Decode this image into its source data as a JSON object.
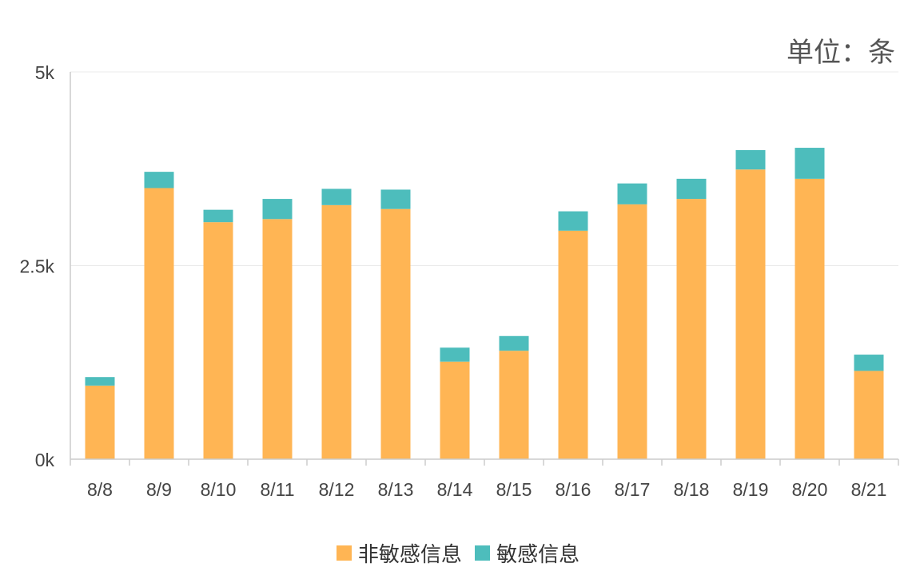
{
  "unit_label": "单位：条",
  "chart_data": {
    "type": "bar",
    "stacked": true,
    "categories": [
      "8/8",
      "8/9",
      "8/10",
      "8/11",
      "8/12",
      "8/13",
      "8/14",
      "8/15",
      "8/16",
      "8/17",
      "8/18",
      "8/19",
      "8/20",
      "8/21"
    ],
    "series": [
      {
        "name": "非敏感信息",
        "color": "#FFB554",
        "values": [
          950,
          3500,
          3060,
          3100,
          3280,
          3230,
          1260,
          1400,
          2950,
          3290,
          3360,
          3740,
          3620,
          1140
        ]
      },
      {
        "name": "敏感信息",
        "color": "#4DBDBC",
        "values": [
          110,
          210,
          160,
          260,
          210,
          250,
          180,
          190,
          250,
          270,
          260,
          250,
          400,
          210
        ]
      }
    ],
    "yticks": [
      "0k",
      "2.5k",
      "5k"
    ],
    "ylim": [
      0,
      5000
    ],
    "grid": true,
    "legend_position": "bottom-center"
  }
}
